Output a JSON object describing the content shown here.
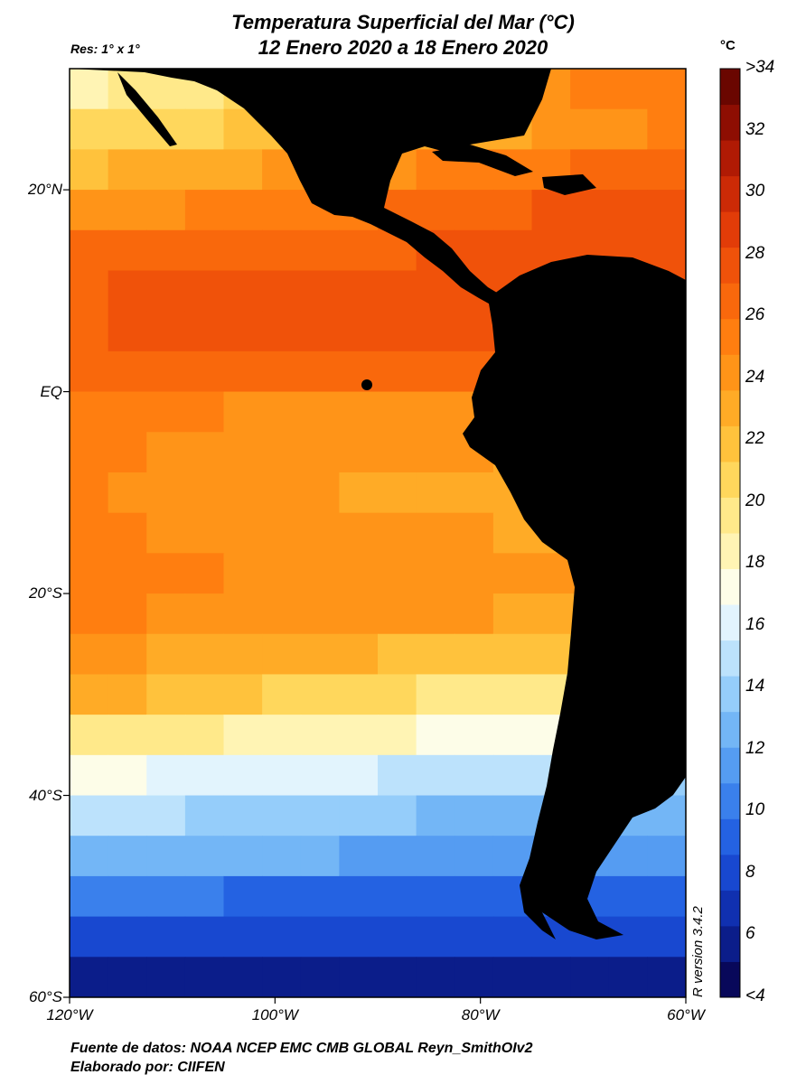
{
  "title_line1": "Temperatura Superficial del Mar (°C)",
  "title_line2": "12 Enero 2020 a 18 Enero 2020",
  "resolution": "Res: 1° x 1°",
  "units": "°C",
  "source": "Fuente de datos: NOAA NCEP EMC CMB GLOBAL Reyn_SmithOIv2",
  "author": "Elaborado por: CIIFEN",
  "r_version": "R version 3.4.2",
  "map": {
    "lon_range": [
      -120,
      -60
    ],
    "lat_range": [
      -60,
      32
    ],
    "land_color": "#000000",
    "lat_ticks": [
      {
        "value": 20,
        "label": "20°N"
      },
      {
        "value": 0,
        "label": "EQ"
      },
      {
        "value": -20,
        "label": "20°S"
      },
      {
        "value": -40,
        "label": "40°S"
      },
      {
        "value": -60,
        "label": "60°S"
      }
    ],
    "lon_ticks": [
      {
        "value": -120,
        "label": "120°W"
      },
      {
        "value": -100,
        "label": "100°W"
      },
      {
        "value": -80,
        "label": "80°W"
      },
      {
        "value": -60,
        "label": "60°W"
      }
    ]
  },
  "colorbar": {
    "min": 4,
    "max": 34,
    "labels": [
      ">34",
      "32",
      "30",
      "28",
      "26",
      "24",
      "22",
      "20",
      "18",
      "16",
      "14",
      "12",
      "10",
      "8",
      "6",
      "<4"
    ],
    "colors": [
      "#08085a",
      "#0b1d8a",
      "#1030b0",
      "#1848d0",
      "#2462e2",
      "#3a80ec",
      "#559cf2",
      "#73b6f6",
      "#95cdfa",
      "#bce2fc",
      "#e2f4fd",
      "#fdfde8",
      "#fff4b4",
      "#ffe98a",
      "#ffd75c",
      "#ffc23c",
      "#ffab26",
      "#ff9418",
      "#ff7e10",
      "#f9680c",
      "#f0520a",
      "#e23c08",
      "#cc2a06",
      "#b01a04",
      "#8e0e02",
      "#6a0600"
    ]
  },
  "sst_field": {
    "lats": [
      32,
      28,
      24,
      20,
      16,
      12,
      8,
      4,
      0,
      -4,
      -8,
      -12,
      -16,
      -20,
      -24,
      -28,
      -32,
      -36,
      -40,
      -44,
      -48,
      -52,
      -56,
      -60
    ],
    "west": [
      18.5,
      20,
      22,
      24,
      26,
      27,
      27,
      26,
      25,
      25,
      25,
      25,
      25,
      25,
      24,
      23,
      20,
      17,
      15,
      13,
      10,
      8,
      6,
      4
    ],
    "east": [
      26,
      25,
      27,
      28,
      28,
      28,
      28,
      26,
      24,
      23,
      22,
      23,
      24,
      23,
      21,
      18,
      16,
      14,
      12,
      11,
      9,
      8,
      6,
      4
    ]
  }
}
